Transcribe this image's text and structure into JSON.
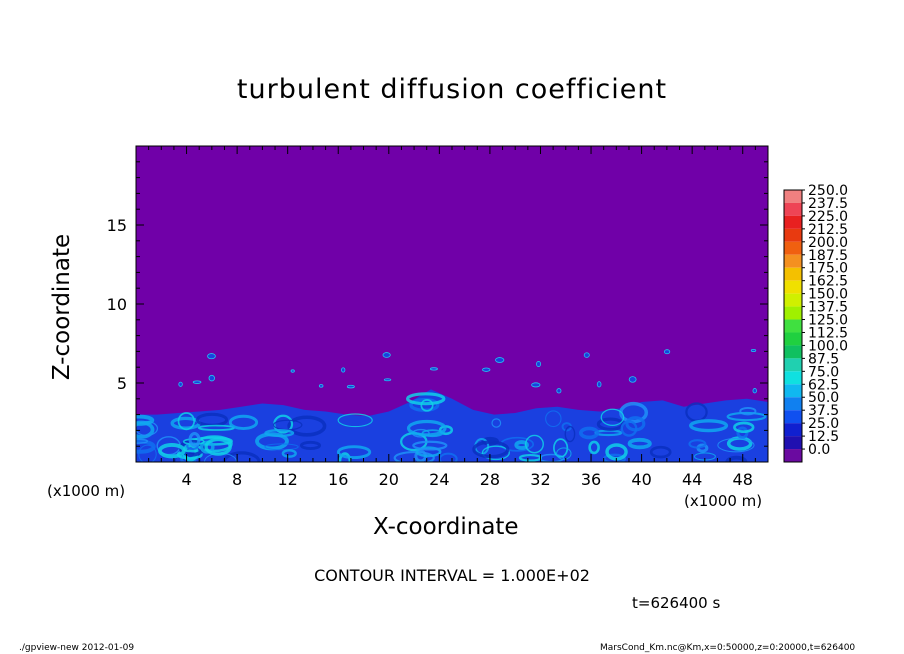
{
  "chart_data": {
    "type": "heatmap",
    "title": "turbulent diffusion coefficient",
    "xlabel": "X-coordinate",
    "ylabel": "Z-coordinate",
    "x_unit": "(×1000 m)",
    "y_unit": "(×1000 m)",
    "xlim": [
      0,
      50
    ],
    "ylim": [
      0,
      20
    ],
    "x_ticks": [
      4,
      8,
      12,
      16,
      20,
      24,
      28,
      32,
      36,
      40,
      44,
      48
    ],
    "y_ticks": [
      5,
      10,
      15
    ],
    "colorbar": {
      "levels": [
        "250.0",
        "237.5",
        "225.0",
        "212.5",
        "200.0",
        "187.5",
        "175.0",
        "162.5",
        "150.0",
        "137.5",
        "125.0",
        "112.5",
        "100.0",
        "87.5",
        "75.0",
        "62.5",
        "50.0",
        "37.5",
        "25.0",
        "12.5",
        "0.0"
      ],
      "colors": [
        "#f08080",
        "#ee4455",
        "#e82020",
        "#e83a10",
        "#f06010",
        "#f49020",
        "#f4c000",
        "#f0e000",
        "#d0f000",
        "#a0f000",
        "#40e040",
        "#20d040",
        "#10c060",
        "#20d0b0",
        "#10e0e0",
        "#10b8f0",
        "#1080f0",
        "#1050f0",
        "#1020d0",
        "#2010b0"
      ],
      "bottom_color": "#6a0aa0"
    },
    "background_color": "#7000a8",
    "boundary_layer_top_km": [
      3.0,
      3.0,
      3.1,
      3.2,
      3.3,
      3.5,
      3.7,
      3.6,
      3.3,
      3.2,
      3.0,
      2.9,
      3.2,
      3.8,
      4.6,
      4.0,
      3.3,
      3.0,
      3.1,
      3.4,
      3.5,
      3.3,
      3.2,
      3.4,
      3.8,
      3.9,
      3.5,
      3.7,
      3.9,
      4.0,
      3.8
    ],
    "contour_interval": "CONTOUR INTERVAL = 1.000E+02",
    "time": "t=626400 s"
  },
  "footer": {
    "left": "./gpview-new  2012-01-09",
    "right": "MarsCond_Km.nc@Km,x=0:50000,z=0:20000,t=626400"
  },
  "axes": {
    "x_unit_left": "(x1000 m)",
    "x_unit_right": "(x1000 m)"
  }
}
